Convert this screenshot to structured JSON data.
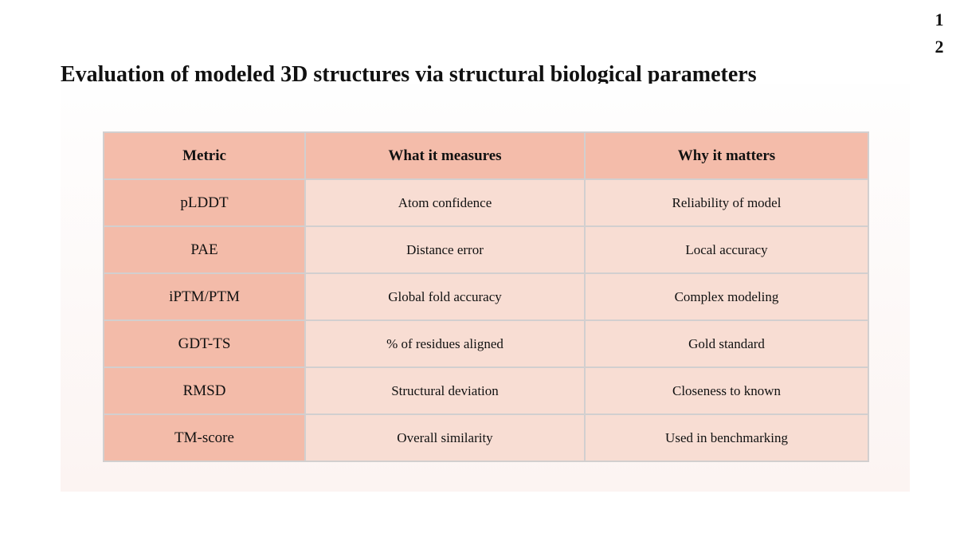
{
  "page_number": "12",
  "title": "Evaluation of modeled 3D structures via structural biological parameters",
  "table": {
    "header": [
      "Metric",
      "What it measures",
      "Why it matters"
    ],
    "rows": [
      [
        "pLDDT",
        "Atom confidence",
        "Reliability of model"
      ],
      [
        "PAE",
        "Distance error",
        "Local accuracy"
      ],
      [
        "iPTM/PTM",
        "Global fold accuracy",
        "Complex modeling"
      ],
      [
        "GDT-TS",
        "% of residues aligned",
        "Gold standard"
      ],
      [
        "RMSD",
        "Structural deviation",
        "Closeness to known"
      ],
      [
        "TM-score",
        "Overall similarity",
        "Used in benchmarking"
      ]
    ]
  }
}
